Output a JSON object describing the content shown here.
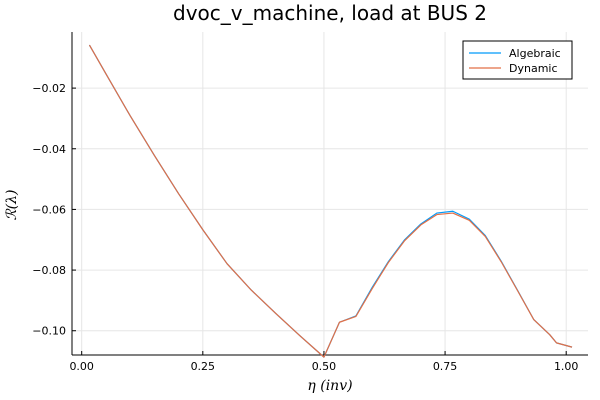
{
  "chart_data": {
    "type": "line",
    "title": "dvoc_v_machine, load at BUS 2",
    "xlabel": "η (inv)",
    "ylabel": "ℛ(λ)",
    "xlim": [
      -0.02,
      1.045
    ],
    "ylim": [
      -0.108,
      -0.0015
    ],
    "xticks": [
      0.0,
      0.25,
      0.5,
      0.75,
      1.0
    ],
    "xtick_labels": [
      "0.00",
      "0.25",
      "0.50",
      "0.75",
      "1.00"
    ],
    "yticks": [
      -0.02,
      -0.04,
      -0.06,
      -0.08,
      -0.1
    ],
    "ytick_labels": [
      "−0.02",
      "−0.04",
      "−0.06",
      "−0.08",
      "−0.10"
    ],
    "grid": true,
    "legend_position": "top-right",
    "series": [
      {
        "name": "Algebraic",
        "color": "#009af9",
        "x": [
          0.016,
          0.05,
          0.1,
          0.15,
          0.2,
          0.25,
          0.3,
          0.35,
          0.4,
          0.45,
          0.5,
          0.532,
          0.566,
          0.6,
          0.633,
          0.666,
          0.7,
          0.733,
          0.766,
          0.8,
          0.833,
          0.866,
          0.9,
          0.933,
          0.966,
          0.98,
          1.012
        ],
        "y": [
          -0.0058,
          -0.0153,
          -0.0291,
          -0.0422,
          -0.0548,
          -0.0667,
          -0.0779,
          -0.0866,
          -0.0942,
          -0.1016,
          -0.1087,
          -0.0972,
          -0.0951,
          -0.0856,
          -0.0772,
          -0.0701,
          -0.0648,
          -0.0612,
          -0.0606,
          -0.0632,
          -0.0686,
          -0.0771,
          -0.0868,
          -0.0963,
          -0.1013,
          -0.104,
          -0.1054
        ]
      },
      {
        "name": "Dynamic",
        "color": "#e26f46",
        "x": [
          0.016,
          0.05,
          0.1,
          0.15,
          0.2,
          0.25,
          0.3,
          0.35,
          0.4,
          0.45,
          0.5,
          0.532,
          0.566,
          0.6,
          0.633,
          0.666,
          0.7,
          0.733,
          0.766,
          0.8,
          0.833,
          0.866,
          0.9,
          0.933,
          0.966,
          0.98,
          1.012
        ],
        "y": [
          -0.0058,
          -0.0153,
          -0.0291,
          -0.0422,
          -0.0548,
          -0.0667,
          -0.0779,
          -0.0866,
          -0.0942,
          -0.1016,
          -0.1087,
          -0.0972,
          -0.0953,
          -0.086,
          -0.0775,
          -0.0704,
          -0.0651,
          -0.0617,
          -0.0612,
          -0.0636,
          -0.0689,
          -0.0773,
          -0.0869,
          -0.0963,
          -0.1013,
          -0.104,
          -0.1054
        ]
      }
    ]
  }
}
